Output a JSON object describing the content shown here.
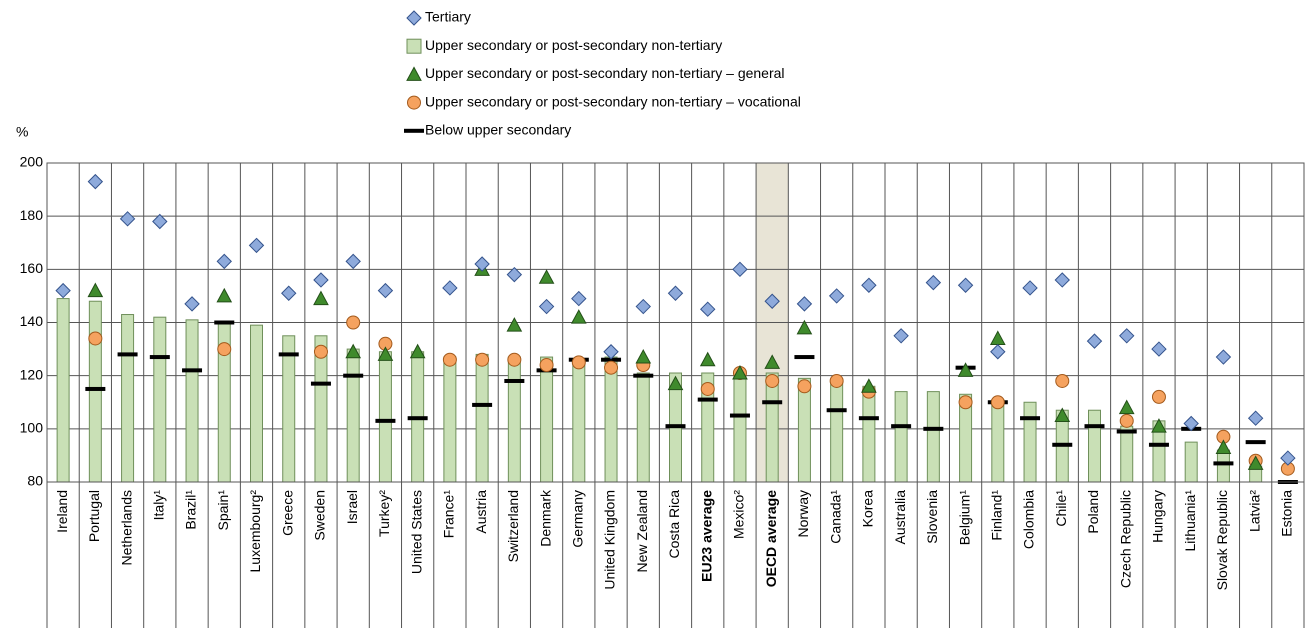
{
  "chart_data": {
    "type": "bar",
    "y_axis_label": "%",
    "ylim": [
      80,
      200
    ],
    "yticks": [
      80,
      100,
      120,
      140,
      160,
      180,
      200
    ],
    "grid": true,
    "bold_categories": [
      20,
      22
    ],
    "highlight_category": 22,
    "categories": [
      "Ireland",
      "Portugal",
      "Netherlands",
      "Italy¹",
      "Brazil¹",
      "Spain¹",
      "Luxembourg²",
      "Greece",
      "Sweden",
      "Israel",
      "Turkey²",
      "United States",
      "France¹",
      "Austria",
      "Switzerland",
      "Denmark",
      "Germany",
      "United Kingdom",
      "New Zealand",
      "Costa Rica",
      "EU23 average",
      "Mexico²",
      "OECD average",
      "Norway",
      "Canada¹",
      "Korea",
      "Australia",
      "Slovenia",
      "Belgium¹",
      "Finland¹",
      "Colombia",
      "Chile¹",
      "Poland",
      "Czech Republic",
      "Hungary",
      "Lithuania¹",
      "Slovak Republic",
      "Latvia²",
      "Estonia"
    ],
    "series": [
      {
        "name": "Tertiary",
        "marker": "diamond",
        "color": "#8eaadb",
        "values": [
          152,
          193,
          179,
          178,
          147,
          163,
          169,
          151,
          156,
          163,
          152,
          null,
          153,
          162,
          158,
          146,
          149,
          129,
          146,
          151,
          145,
          160,
          148,
          147,
          150,
          154,
          135,
          155,
          154,
          129,
          153,
          156,
          133,
          135,
          130,
          102,
          127,
          104,
          89
        ]
      },
      {
        "name": "Upper secondary or post-secondary non-tertiary",
        "marker": "bar",
        "color": "#c9e0b6",
        "values": [
          149,
          148,
          143,
          142,
          141,
          140,
          139,
          135,
          135,
          130,
          129,
          129,
          127,
          128,
          127,
          127,
          126,
          127,
          121,
          121,
          121,
          121,
          121,
          119,
          118,
          116,
          114,
          114,
          113,
          111,
          110,
          107,
          107,
          101,
          103,
          95,
          92,
          86,
          80
        ]
      },
      {
        "name": "Upper secondary or post-secondary non-tertiary – general",
        "marker": "triangle",
        "color": "#3f8a2c",
        "values": [
          null,
          152,
          null,
          null,
          null,
          150,
          null,
          null,
          149,
          129,
          128,
          129,
          null,
          160,
          139,
          157,
          142,
          null,
          127,
          117,
          126,
          121,
          125,
          138,
          null,
          116,
          null,
          null,
          122,
          134,
          null,
          105,
          null,
          108,
          101,
          null,
          93,
          87,
          null
        ]
      },
      {
        "name": "Upper secondary or post-secondary non-tertiary – vocational",
        "marker": "circle",
        "color": "#f5a25f",
        "values": [
          null,
          134,
          null,
          null,
          null,
          130,
          null,
          null,
          129,
          140,
          132,
          null,
          126,
          126,
          126,
          124,
          125,
          123,
          124,
          null,
          115,
          121,
          118,
          116,
          118,
          114,
          null,
          null,
          110,
          110,
          null,
          118,
          null,
          103,
          112,
          null,
          97,
          88,
          85
        ]
      },
      {
        "name": "Below upper secondary",
        "marker": "dash",
        "color": "#000000",
        "values": [
          null,
          115,
          128,
          127,
          122,
          140,
          null,
          128,
          117,
          120,
          103,
          104,
          null,
          109,
          118,
          122,
          126,
          126,
          120,
          101,
          111,
          105,
          110,
          127,
          107,
          104,
          101,
          100,
          123,
          110,
          104,
          94,
          101,
          99,
          94,
          100,
          87,
          95,
          80
        ]
      }
    ]
  }
}
